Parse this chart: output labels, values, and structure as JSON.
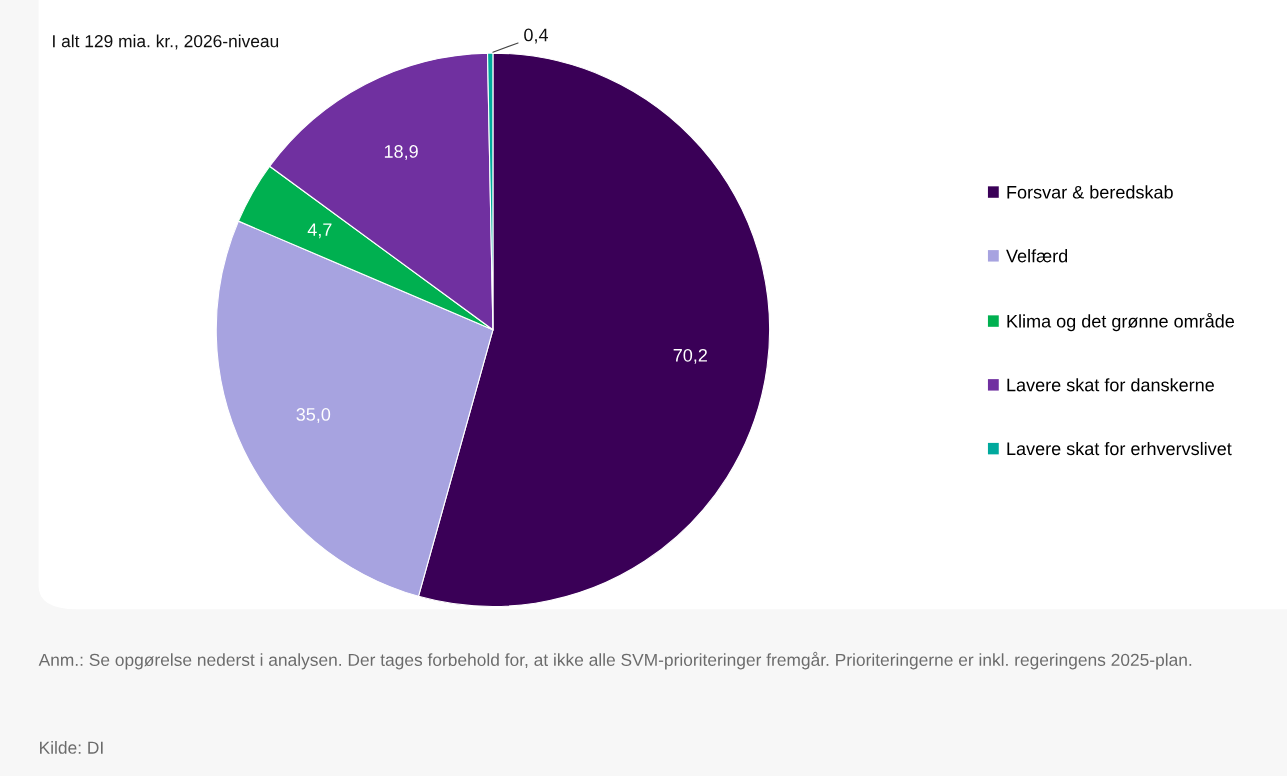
{
  "chart_data": {
    "type": "pie",
    "title": "I alt 129 mia. kr., 2026-niveau",
    "categories": [
      "Forsvar & beredskab",
      "Velfærd",
      "Klima og det grønne område",
      "Lavere skat for danskerne",
      "Lavere skat for erhvervslivet"
    ],
    "values": [
      70.2,
      35.0,
      4.7,
      18.9,
      0.4
    ],
    "colors": [
      "#3a0057",
      "#a7a3e0",
      "#00b050",
      "#7030a0",
      "#00a99d"
    ],
    "value_labels": [
      "70,2",
      "35,0",
      "4,7",
      "18,9",
      "0,4"
    ],
    "legend": "right",
    "annotations": [
      "Anm.: Se opgørelse nederst i analysen. Der tages forbehold for, at ikke alle SVM-prioriteringer fremgår. Prioriteringerne er inkl. regeringens 2025-plan.",
      "Kilde: DI"
    ]
  }
}
